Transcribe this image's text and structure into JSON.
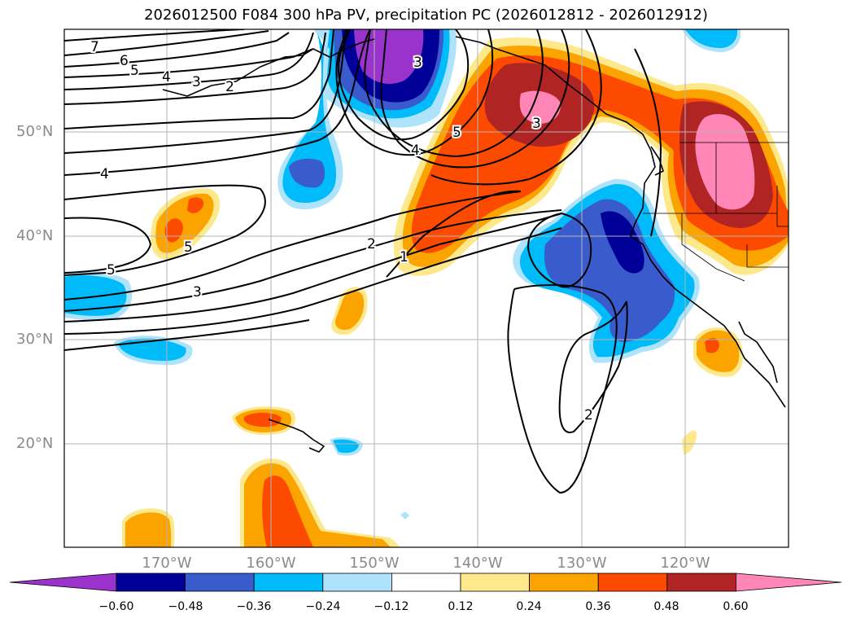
{
  "title": "2026012500 F084 300 hPa PV, precipitation PC (2026012812 - 2026012912)",
  "map": {
    "lat_labels": [
      "50°N",
      "40°N",
      "30°N",
      "20°N"
    ],
    "lon_labels": [
      "170°W",
      "160°W",
      "150°W",
      "140°W",
      "130°W",
      "120°W"
    ]
  },
  "colorbar": {
    "ticks": [
      "−0.60",
      "−0.48",
      "−0.36",
      "−0.24",
      "−0.12",
      "0.12",
      "0.24",
      "0.36",
      "0.48",
      "0.60"
    ],
    "colors": [
      "#9933cc",
      "#000099",
      "#3a5bcc",
      "#00bbf9",
      "#aee3fb",
      "#ffffff",
      "#fde98c",
      "#fba400",
      "#fc4a00",
      "#b12424",
      "#ff86b6"
    ],
    "extend": "both"
  },
  "contour_labels": [
    "7",
    "6",
    "5",
    "4",
    "3",
    "2",
    "4",
    "5",
    "3",
    "2",
    "1",
    "5",
    "3",
    "3",
    "4",
    "5",
    "2"
  ]
}
